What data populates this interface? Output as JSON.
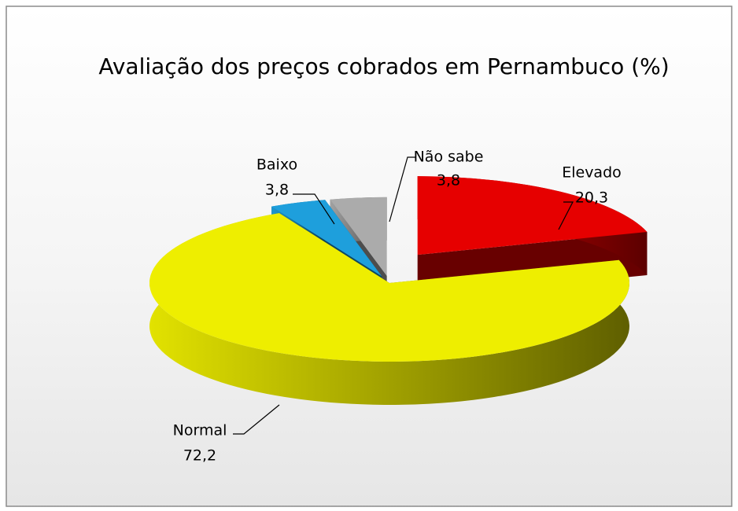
{
  "chart_data": {
    "type": "pie3d",
    "title": "Avaliação dos preços cobrados em Pernambuco (%)",
    "categories": [
      "Elevado",
      "Normal",
      "Baixo",
      "Não sabe"
    ],
    "values": [
      20.3,
      72.2,
      3.8,
      3.8
    ],
    "value_labels": [
      "20,3",
      "72,2",
      "3,8",
      "3,8"
    ],
    "colors": [
      "#e60000",
      "#eeee00",
      "#1e9fdc",
      "#ababab"
    ]
  }
}
